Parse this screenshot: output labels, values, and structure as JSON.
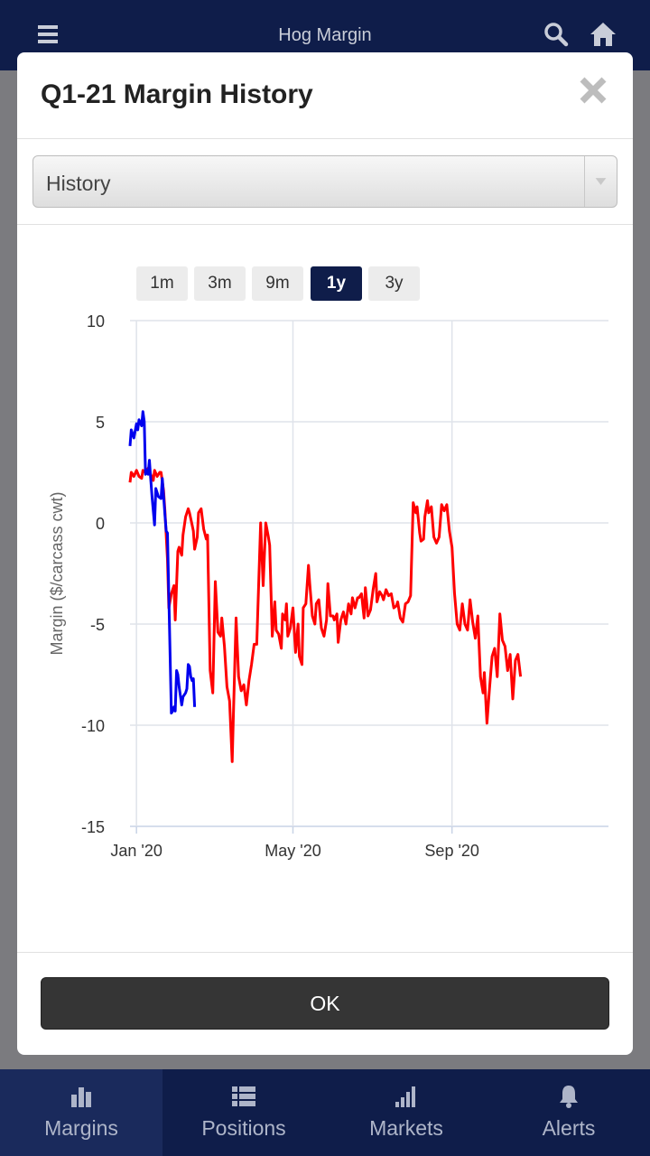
{
  "app": {
    "title": "Hog Margin",
    "icons": [
      "menu-icon",
      "search-icon",
      "home-icon"
    ]
  },
  "modal": {
    "title": "Q1-21 Margin History",
    "close_icon": "close-icon",
    "select": {
      "value": "History"
    },
    "ranges": [
      "1m",
      "3m",
      "9m",
      "1y",
      "3y"
    ],
    "active_range": "1y",
    "ok_label": "OK"
  },
  "tabs": [
    {
      "label": "Margins",
      "icon": "bar-chart-icon",
      "active": true
    },
    {
      "label": "Positions",
      "icon": "list-icon",
      "active": false
    },
    {
      "label": "Markets",
      "icon": "signal-icon",
      "active": false
    },
    {
      "label": "Alerts",
      "icon": "bell-icon",
      "active": false
    }
  ],
  "chart_data": {
    "type": "line",
    "ylabel": "Margin ($/carcass cwt)",
    "ylim": [
      -15,
      10
    ],
    "yticks": [
      10,
      5,
      0,
      -5,
      -10,
      -15
    ],
    "xlim": [
      "2019-12-27",
      "2020-12-31"
    ],
    "xticks": [
      {
        "date": "2020-01-01",
        "label": "Jan '20"
      },
      {
        "date": "2020-05-01",
        "label": "May '20"
      },
      {
        "date": "2020-09-01",
        "label": "Sep '20"
      }
    ],
    "grid": true,
    "series": [
      {
        "color": "#0000ee",
        "points": [
          [
            "2019-12-27",
            3.8
          ],
          [
            "2019-12-28",
            4.6
          ],
          [
            "2019-12-30",
            4.2
          ],
          [
            "2020-01-01",
            4.9
          ],
          [
            "2020-01-02",
            4.6
          ],
          [
            "2020-01-03",
            5.1
          ],
          [
            "2020-01-05",
            4.8
          ],
          [
            "2020-01-06",
            5.5
          ],
          [
            "2020-01-07",
            5.0
          ],
          [
            "2020-01-08",
            2.4
          ],
          [
            "2020-01-09",
            2.6
          ],
          [
            "2020-01-10",
            2.4
          ],
          [
            "2020-01-11",
            3.1
          ],
          [
            "2020-01-12",
            2.2
          ],
          [
            "2020-01-13",
            1.3
          ],
          [
            "2020-01-15",
            -0.1
          ],
          [
            "2020-01-16",
            1.7
          ],
          [
            "2020-01-18",
            1.3
          ],
          [
            "2020-01-20",
            1.2
          ],
          [
            "2020-01-21",
            2.2
          ],
          [
            "2020-01-23",
            0.4
          ],
          [
            "2020-01-24",
            -0.4
          ],
          [
            "2020-01-25",
            -0.5
          ],
          [
            "2020-01-28",
            -9.4
          ],
          [
            "2020-01-29",
            -9.3
          ],
          [
            "2020-01-30",
            -9.1
          ],
          [
            "2020-01-31",
            -9.3
          ],
          [
            "2020-02-01",
            -7.3
          ],
          [
            "2020-02-02",
            -7.5
          ],
          [
            "2020-02-03",
            -8.1
          ],
          [
            "2020-02-05",
            -9.0
          ],
          [
            "2020-02-06",
            -8.6
          ],
          [
            "2020-02-08",
            -8.4
          ],
          [
            "2020-02-09",
            -8.2
          ],
          [
            "2020-02-10",
            -7.0
          ],
          [
            "2020-02-11",
            -7.1
          ],
          [
            "2020-02-12",
            -7.6
          ],
          [
            "2020-02-13",
            -7.8
          ],
          [
            "2020-02-14",
            -7.7
          ],
          [
            "2020-02-15",
            -9.1
          ]
        ]
      },
      {
        "color": "#ff0000",
        "points": [
          [
            "2019-12-27",
            2.0
          ],
          [
            "2019-12-28",
            2.5
          ],
          [
            "2019-12-30",
            2.3
          ],
          [
            "2020-01-01",
            2.6
          ],
          [
            "2020-01-03",
            2.3
          ],
          [
            "2020-01-05",
            2.2
          ],
          [
            "2020-01-06",
            2.6
          ],
          [
            "2020-01-08",
            2.5
          ],
          [
            "2020-01-10",
            2.7
          ],
          [
            "2020-01-12",
            2.4
          ],
          [
            "2020-01-14",
            2.1
          ],
          [
            "2020-01-15",
            2.6
          ],
          [
            "2020-01-17",
            2.3
          ],
          [
            "2020-01-19",
            2.5
          ],
          [
            "2020-01-20",
            2.5
          ],
          [
            "2020-01-22",
            1.6
          ],
          [
            "2020-01-23",
            0.6
          ],
          [
            "2020-01-25",
            -1.8
          ],
          [
            "2020-01-26",
            -4.2
          ],
          [
            "2020-01-28",
            -3.5
          ],
          [
            "2020-01-30",
            -3.1
          ],
          [
            "2020-01-31",
            -4.8
          ],
          [
            "2020-02-02",
            -1.4
          ],
          [
            "2020-02-03",
            -1.2
          ],
          [
            "2020-02-05",
            -1.6
          ],
          [
            "2020-02-06",
            -0.6
          ],
          [
            "2020-02-08",
            0.3
          ],
          [
            "2020-02-10",
            0.7
          ],
          [
            "2020-02-11",
            0.5
          ],
          [
            "2020-02-13",
            -0.1
          ],
          [
            "2020-02-14",
            -0.4
          ],
          [
            "2020-02-15",
            -1.3
          ],
          [
            "2020-02-17",
            -0.7
          ],
          [
            "2020-02-18",
            0.5
          ],
          [
            "2020-02-20",
            0.7
          ],
          [
            "2020-02-22",
            -0.3
          ],
          [
            "2020-02-24",
            -0.8
          ],
          [
            "2020-02-25",
            -0.6
          ],
          [
            "2020-02-27",
            -7.3
          ],
          [
            "2020-02-29",
            -8.4
          ],
          [
            "2020-03-02",
            -2.9
          ],
          [
            "2020-03-04",
            -5.4
          ],
          [
            "2020-03-06",
            -5.6
          ],
          [
            "2020-03-07",
            -4.7
          ],
          [
            "2020-03-09",
            -6.1
          ],
          [
            "2020-03-11",
            -8.1
          ],
          [
            "2020-03-13",
            -8.8
          ],
          [
            "2020-03-15",
            -11.8
          ],
          [
            "2020-03-16",
            -9.4
          ],
          [
            "2020-03-18",
            -4.7
          ],
          [
            "2020-03-20",
            -7.6
          ],
          [
            "2020-03-22",
            -8.3
          ],
          [
            "2020-03-24",
            -8.0
          ],
          [
            "2020-03-26",
            -9.0
          ],
          [
            "2020-03-28",
            -7.8
          ],
          [
            "2020-03-30",
            -7.0
          ],
          [
            "2020-04-01",
            -6.0
          ],
          [
            "2020-04-03",
            -6.0
          ],
          [
            "2020-04-05",
            -2.1
          ],
          [
            "2020-04-06",
            0.0
          ],
          [
            "2020-04-08",
            -3.1
          ],
          [
            "2020-04-10",
            0.0
          ],
          [
            "2020-04-12",
            -0.7
          ],
          [
            "2020-04-13",
            -1.1
          ],
          [
            "2020-04-15",
            -5.6
          ],
          [
            "2020-04-17",
            -3.9
          ],
          [
            "2020-04-18",
            -5.3
          ],
          [
            "2020-04-20",
            -5.5
          ],
          [
            "2020-04-22",
            -6.2
          ],
          [
            "2020-04-23",
            -4.5
          ],
          [
            "2020-04-25",
            -4.8
          ],
          [
            "2020-04-26",
            -4.0
          ],
          [
            "2020-04-27",
            -5.6
          ],
          [
            "2020-04-29",
            -5.2
          ],
          [
            "2020-05-01",
            -4.2
          ],
          [
            "2020-05-03",
            -6.4
          ],
          [
            "2020-05-05",
            -5.0
          ],
          [
            "2020-05-06",
            -6.6
          ],
          [
            "2020-05-08",
            -7.0
          ],
          [
            "2020-05-09",
            -4.2
          ],
          [
            "2020-05-11",
            -4.0
          ],
          [
            "2020-05-13",
            -2.1
          ],
          [
            "2020-05-14",
            -3.0
          ],
          [
            "2020-05-16",
            -4.6
          ],
          [
            "2020-05-18",
            -5.0
          ],
          [
            "2020-05-19",
            -4.0
          ],
          [
            "2020-05-21",
            -3.8
          ],
          [
            "2020-05-23",
            -5.2
          ],
          [
            "2020-05-25",
            -5.6
          ],
          [
            "2020-05-27",
            -4.8
          ],
          [
            "2020-05-28",
            -3.0
          ],
          [
            "2020-05-30",
            -4.6
          ],
          [
            "2020-06-01",
            -4.6
          ],
          [
            "2020-06-02",
            -4.8
          ],
          [
            "2020-06-04",
            -4.5
          ],
          [
            "2020-06-05",
            -5.9
          ],
          [
            "2020-06-07",
            -4.8
          ],
          [
            "2020-06-09",
            -4.4
          ],
          [
            "2020-06-11",
            -5.0
          ],
          [
            "2020-06-13",
            -4.0
          ],
          [
            "2020-06-15",
            -4.5
          ],
          [
            "2020-06-16",
            -3.7
          ],
          [
            "2020-06-18",
            -4.2
          ],
          [
            "2020-06-20",
            -3.7
          ],
          [
            "2020-06-21",
            -3.7
          ],
          [
            "2020-06-23",
            -3.5
          ],
          [
            "2020-06-25",
            -4.7
          ],
          [
            "2020-06-26",
            -3.2
          ],
          [
            "2020-06-28",
            -4.6
          ],
          [
            "2020-06-30",
            -4.3
          ],
          [
            "2020-07-02",
            -3.3
          ],
          [
            "2020-07-04",
            -2.5
          ],
          [
            "2020-07-05",
            -3.9
          ],
          [
            "2020-07-07",
            -3.4
          ],
          [
            "2020-07-09",
            -3.6
          ],
          [
            "2020-07-10",
            -3.8
          ],
          [
            "2020-07-12",
            -3.3
          ],
          [
            "2020-07-14",
            -3.6
          ],
          [
            "2020-07-16",
            -3.5
          ],
          [
            "2020-07-18",
            -4.2
          ],
          [
            "2020-07-20",
            -4.1
          ],
          [
            "2020-07-21",
            -3.9
          ],
          [
            "2020-07-23",
            -4.7
          ],
          [
            "2020-07-25",
            -4.9
          ],
          [
            "2020-07-27",
            -4.0
          ],
          [
            "2020-07-29",
            -3.9
          ],
          [
            "2020-07-31",
            -3.6
          ],
          [
            "2020-08-02",
            1.0
          ],
          [
            "2020-08-04",
            0.5
          ],
          [
            "2020-08-05",
            0.8
          ],
          [
            "2020-08-07",
            -0.5
          ],
          [
            "2020-08-08",
            -0.9
          ],
          [
            "2020-08-10",
            -0.8
          ],
          [
            "2020-08-11",
            0.3
          ],
          [
            "2020-08-13",
            1.1
          ],
          [
            "2020-08-14",
            0.5
          ],
          [
            "2020-08-16",
            0.8
          ],
          [
            "2020-08-18",
            -0.7
          ],
          [
            "2020-08-20",
            -1.0
          ],
          [
            "2020-08-22",
            -0.7
          ],
          [
            "2020-08-24",
            0.9
          ],
          [
            "2020-08-26",
            0.6
          ],
          [
            "2020-08-28",
            0.9
          ],
          [
            "2020-08-30",
            -0.4
          ],
          [
            "2020-09-01",
            -1.2
          ],
          [
            "2020-09-03",
            -3.5
          ],
          [
            "2020-09-05",
            -5.0
          ],
          [
            "2020-09-07",
            -5.3
          ],
          [
            "2020-09-09",
            -4.0
          ],
          [
            "2020-09-11",
            -5.0
          ],
          [
            "2020-09-13",
            -5.3
          ],
          [
            "2020-09-15",
            -3.8
          ],
          [
            "2020-09-17",
            -4.9
          ],
          [
            "2020-09-19",
            -5.7
          ],
          [
            "2020-09-21",
            -4.6
          ],
          [
            "2020-09-23",
            -7.6
          ],
          [
            "2020-09-25",
            -8.4
          ],
          [
            "2020-09-26",
            -7.4
          ],
          [
            "2020-09-28",
            -9.9
          ],
          [
            "2020-09-30",
            -8.2
          ],
          [
            "2020-10-02",
            -6.6
          ],
          [
            "2020-10-04",
            -6.2
          ],
          [
            "2020-10-06",
            -7.6
          ],
          [
            "2020-10-08",
            -4.5
          ],
          [
            "2020-10-10",
            -5.8
          ],
          [
            "2020-10-12",
            -6.1
          ],
          [
            "2020-10-14",
            -7.3
          ],
          [
            "2020-10-16",
            -6.5
          ],
          [
            "2020-10-18",
            -8.7
          ],
          [
            "2020-10-20",
            -6.8
          ],
          [
            "2020-10-22",
            -6.5
          ],
          [
            "2020-10-24",
            -7.6
          ]
        ]
      }
    ]
  }
}
